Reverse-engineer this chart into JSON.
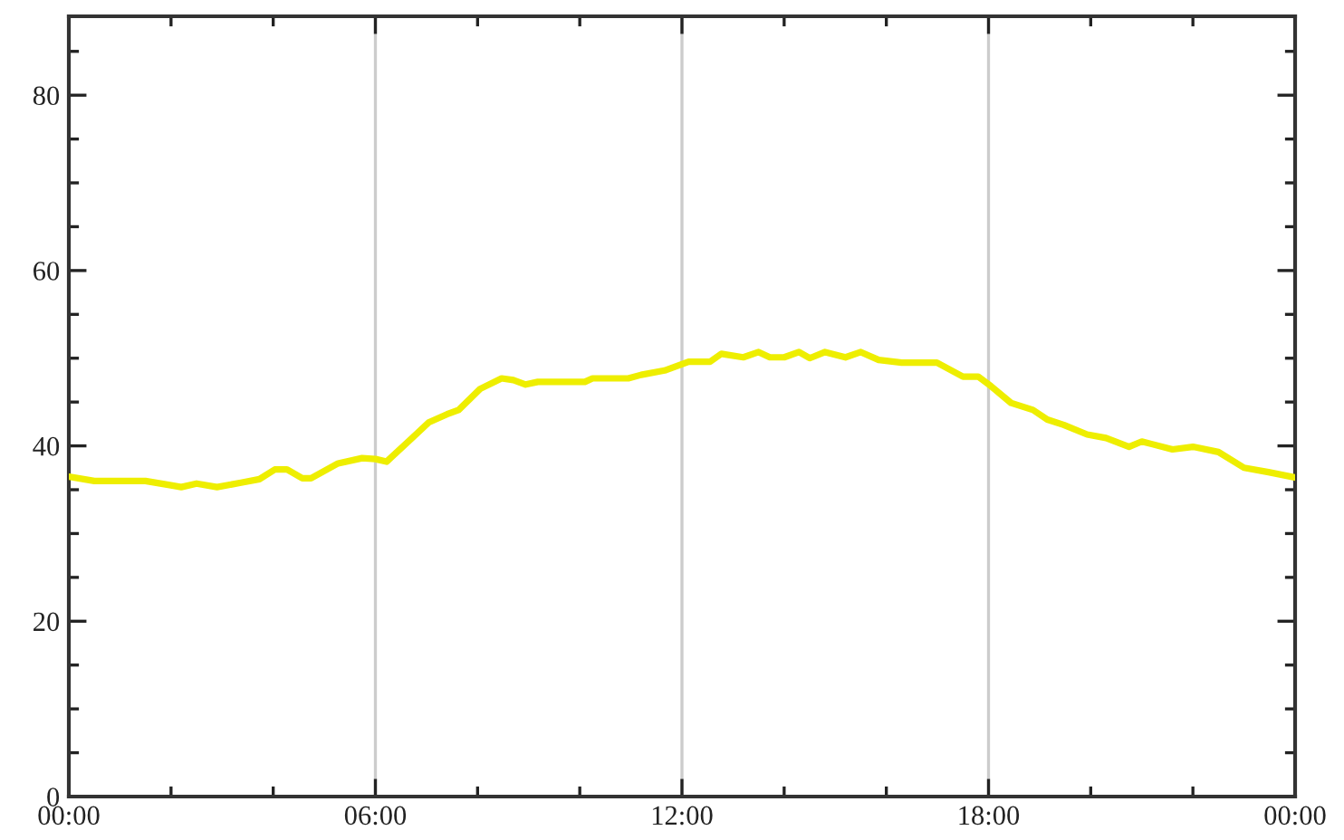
{
  "chart_data": {
    "type": "line",
    "x": [
      0,
      0.5,
      1,
      1.5,
      2,
      2.2,
      2.5,
      2.9,
      3.37,
      3.73,
      4.03,
      4.27,
      4.57,
      4.74,
      5.27,
      5.74,
      6,
      6.22,
      6.7,
      7.05,
      7.4,
      7.63,
      8.05,
      8.47,
      8.7,
      8.94,
      9.18,
      10.1,
      10.25,
      10.95,
      11.2,
      11.66,
      12.13,
      12.55,
      12.77,
      13.2,
      13.5,
      13.72,
      14,
      14.29,
      14.5,
      14.8,
      15.2,
      15.5,
      15.85,
      16.3,
      16.99,
      17.5,
      17.8,
      18.05,
      18.44,
      18.87,
      19.15,
      19.47,
      19.93,
      20.3,
      20.75,
      21,
      21.6,
      22,
      22.5,
      23,
      23.48,
      24
    ],
    "series": [
      {
        "color": "#eeee00",
        "values": [
          36.5,
          36,
          36,
          36,
          35.5,
          35.3,
          35.7,
          35.3,
          35.8,
          36.2,
          37.3,
          37.3,
          36.3,
          36.3,
          38,
          38.6,
          38.5,
          38.2,
          40.8,
          42.7,
          43.6,
          44.1,
          46.5,
          47.7,
          47.5,
          47,
          47.3,
          47.3,
          47.7,
          47.7,
          48.1,
          48.6,
          49.6,
          49.6,
          50.5,
          50.1,
          50.7,
          50.1,
          50.1,
          50.7,
          50,
          50.7,
          50.1,
          50.7,
          49.8,
          49.5,
          49.5,
          47.9,
          47.9,
          46.8,
          44.9,
          44.1,
          43,
          42.4,
          41.3,
          40.9,
          39.9,
          40.5,
          39.6,
          39.9,
          39.3,
          37.5,
          37,
          36.4
        ]
      }
    ],
    "xlim": [
      0,
      24
    ],
    "xticks": [
      {
        "value": 0,
        "label": "00:00"
      },
      {
        "value": 2,
        "label": null
      },
      {
        "value": 4,
        "label": null
      },
      {
        "value": 6,
        "label": "06:00"
      },
      {
        "value": 8,
        "label": null
      },
      {
        "value": 10,
        "label": null
      },
      {
        "value": 12,
        "label": "12:00"
      },
      {
        "value": 14,
        "label": null
      },
      {
        "value": 16,
        "label": null
      },
      {
        "value": 18,
        "label": "18:00"
      },
      {
        "value": 20,
        "label": null
      },
      {
        "value": 22,
        "label": null
      },
      {
        "value": 24,
        "label": "00:00"
      }
    ],
    "ylim": [
      0,
      89
    ],
    "yticks": [
      0,
      {
        "value": 5,
        "label": null
      },
      {
        "value": 10,
        "label": null
      },
      {
        "value": 15,
        "label": null
      },
      20,
      {
        "value": 25,
        "label": null
      },
      {
        "value": 30,
        "label": null
      },
      {
        "value": 35,
        "label": null
      },
      40,
      {
        "value": 45,
        "label": null
      },
      {
        "value": 50,
        "label": null
      },
      {
        "value": 55,
        "label": null
      },
      60,
      {
        "value": 65,
        "label": null
      },
      {
        "value": 70,
        "label": null
      },
      {
        "value": 75,
        "label": null
      },
      80,
      {
        "value": 85,
        "label": null
      }
    ],
    "grid": "x",
    "marker": "none",
    "line_style": "solid",
    "legend": false
  }
}
